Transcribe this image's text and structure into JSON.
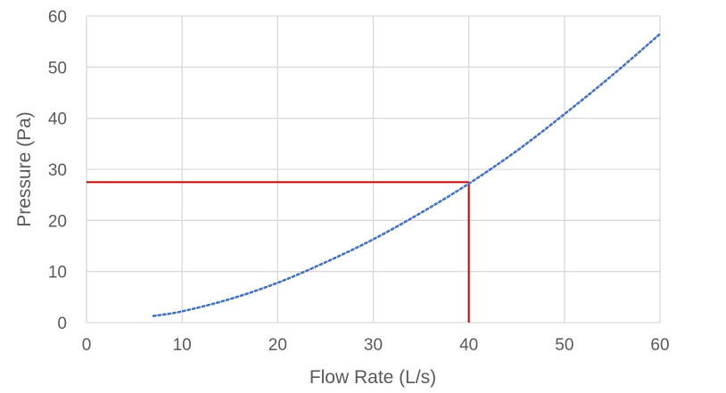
{
  "chart_data": {
    "type": "line",
    "title": "",
    "xlabel": "Flow Rate (L/s)",
    "ylabel": "Pressure (Pa)",
    "xlim": [
      0,
      60
    ],
    "ylim": [
      0,
      60
    ],
    "x_ticks": [
      0,
      10,
      20,
      30,
      40,
      50,
      60
    ],
    "y_ticks": [
      0,
      10,
      20,
      30,
      40,
      50,
      60
    ],
    "x_tick_labels": [
      "0",
      "10",
      "20",
      "30",
      "40",
      "50",
      "60"
    ],
    "y_tick_labels": [
      "0",
      "10",
      "20",
      "30",
      "40",
      "50",
      "60"
    ],
    "grid": true,
    "legend": "none",
    "series": [
      {
        "line_style": "dotted",
        "color": "#4472C4",
        "x": [
          7,
          10,
          15,
          20,
          25,
          30,
          35,
          40,
          45,
          50,
          55,
          60
        ],
        "y": [
          1.3,
          2.2,
          4.6,
          7.8,
          11.8,
          16.3,
          21.5,
          27.2,
          33.6,
          40.8,
          48.4,
          56.5
        ]
      }
    ],
    "reference_lines": {
      "color": "#C00000",
      "x": 40,
      "y": 27.5
    }
  },
  "colors": {
    "grid": "#D9D9D9",
    "text": "#595959",
    "series": "#4472C4",
    "reference": "#C00000"
  }
}
